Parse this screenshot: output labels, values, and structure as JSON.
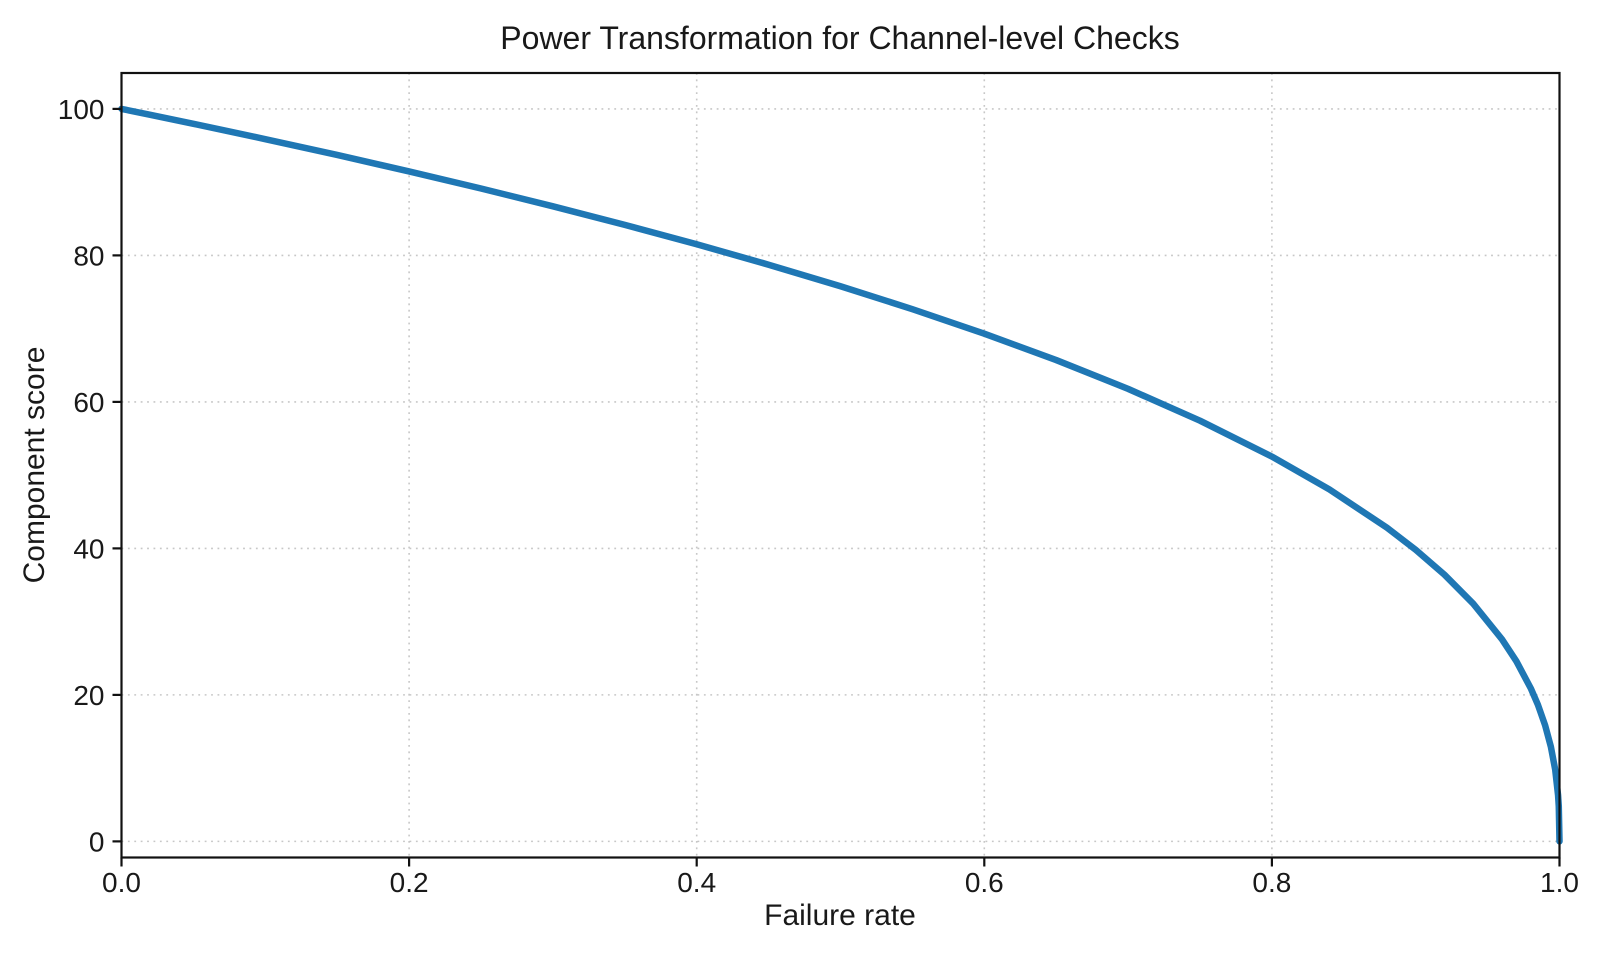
{
  "figure": {
    "background": "#ffffff"
  },
  "colors": {
    "accent": "#1f77b4",
    "grid": "#c7c7c7",
    "spine": "#111111",
    "text": "#191919"
  },
  "chart_data": {
    "type": "line",
    "title": "Power Transformation for Channel-level Checks",
    "xlabel": "Failure rate",
    "ylabel": "Component score",
    "xlim": [
      0,
      1
    ],
    "ylim": [
      -2.2,
      104.9
    ],
    "grid": true,
    "grid_style": "dotted",
    "legend": "none",
    "xticks": {
      "values": [
        0,
        0.2,
        0.4,
        0.6,
        0.8,
        1.0
      ],
      "labels": [
        "0.0",
        "0.2",
        "0.4",
        "0.6",
        "0.8",
        "1.0"
      ]
    },
    "yticks": {
      "values": [
        0,
        20,
        40,
        60,
        80,
        100
      ],
      "labels": [
        "0",
        "20",
        "40",
        "60",
        "80",
        "100"
      ]
    },
    "series": [
      {
        "name": "component_score",
        "color": "#1f77b4",
        "line_width": 6.5,
        "x": [
          0,
          0.02,
          0.05,
          0.1,
          0.15,
          0.2,
          0.25,
          0.3,
          0.35,
          0.4,
          0.45,
          0.5,
          0.55,
          0.6,
          0.65,
          0.7,
          0.75,
          0.8,
          0.84,
          0.88,
          0.9,
          0.92,
          0.94,
          0.96,
          0.97,
          0.98,
          0.985,
          0.99,
          0.994,
          0.997,
          0.999,
          0.9995,
          1.0
        ],
        "y": [
          100,
          99.19,
          97.97,
          95.87,
          93.71,
          91.46,
          89.13,
          86.7,
          84.17,
          81.52,
          78.73,
          75.79,
          72.66,
          69.31,
          65.71,
          61.78,
          57.43,
          52.53,
          48.05,
          42.82,
          39.81,
          36.41,
          32.45,
          27.59,
          24.6,
          20.91,
          18.64,
          15.85,
          12.92,
          9.8,
          6.31,
          4.78,
          0
        ]
      }
    ]
  }
}
